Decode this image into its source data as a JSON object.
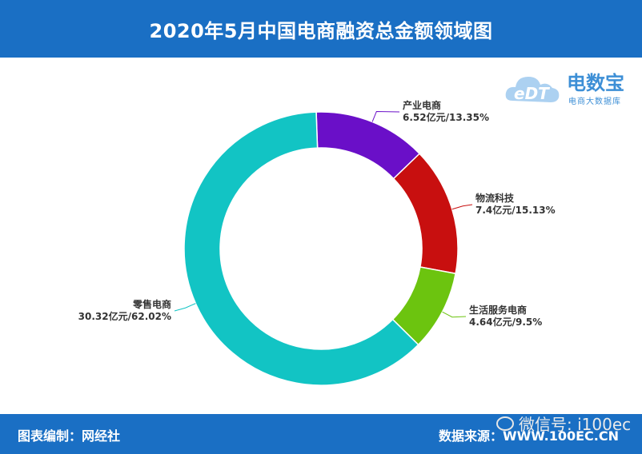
{
  "header": {
    "title": "2020年5月中国电商融资总金额领域图"
  },
  "footer": {
    "left_text": "图表编制：网经社",
    "right_text": "数据来源：WWW.100EC.CN"
  },
  "watermark": {
    "text": "微信号: i100ec",
    "icon": "wechat-icon"
  },
  "logo": {
    "mark": "eDT",
    "brand": "电数宝",
    "subtitle": "电商大数据库"
  },
  "colors": {
    "bar": "#1a6fc4",
    "slices": [
      "#6a0fc8",
      "#c80f0f",
      "#6cc40f",
      "#12c4c4"
    ]
  },
  "chart_data": {
    "type": "pie",
    "donut": true,
    "title": "2020年5月中国电商融资总金额领域图",
    "slices": [
      {
        "name": "产业电商",
        "value": 6.52,
        "percent": 13.35,
        "value_label": "6.52亿元/13.35%"
      },
      {
        "name": "物流科技",
        "value": 7.4,
        "percent": 15.13,
        "value_label": "7.4亿元/15.13%"
      },
      {
        "name": "生活服务电商",
        "value": 4.64,
        "percent": 9.5,
        "value_label": "4.64亿元/9.5%"
      },
      {
        "name": "零售电商",
        "value": 30.32,
        "percent": 62.02,
        "value_label": "30.32亿元/62.02%"
      }
    ]
  }
}
